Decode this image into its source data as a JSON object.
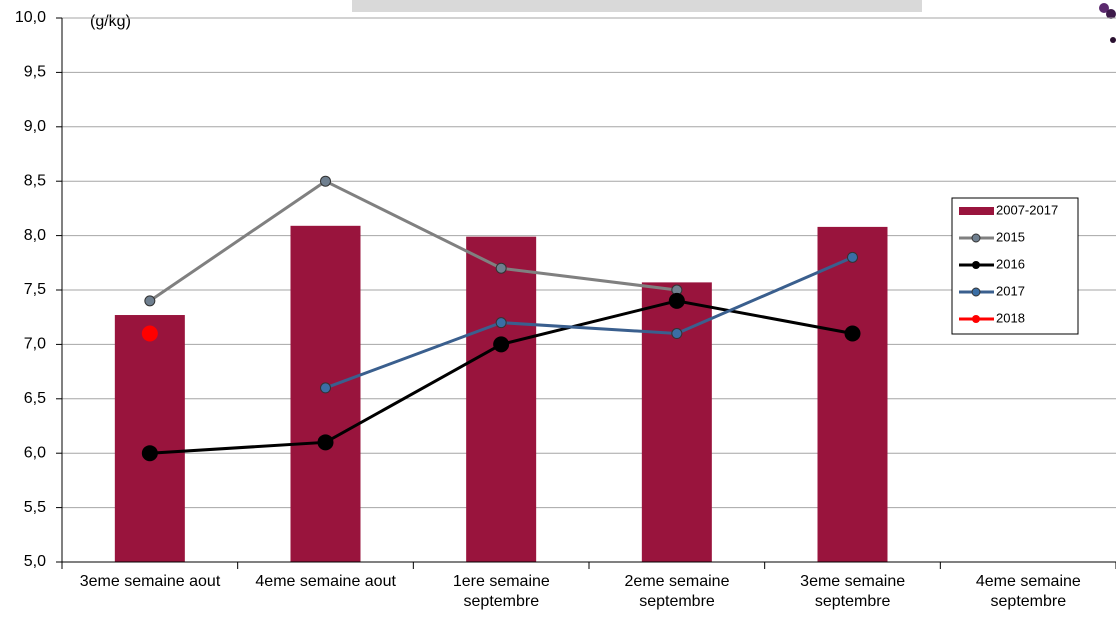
{
  "chart_data": {
    "type": "bar",
    "annotation": "(g/kg)",
    "categories": [
      "3eme semaine aout",
      "4eme semaine aout",
      "1ere semaine septembre",
      "2eme semaine septembre",
      "3eme semaine septembre",
      "4eme semaine septembre"
    ],
    "series": [
      {
        "name": "2007-2017",
        "type": "bar",
        "color": "#99143d",
        "values": [
          7.27,
          8.09,
          7.99,
          7.57,
          8.08,
          null
        ]
      },
      {
        "name": "2015",
        "type": "line",
        "color": "#808080",
        "marker_color": "#6f7f8f",
        "marker_size": 5,
        "values": [
          7.4,
          8.5,
          7.7,
          7.5,
          null,
          null
        ]
      },
      {
        "name": "2016",
        "type": "line",
        "color": "#000000",
        "marker_color": "#000000",
        "marker_size": 8,
        "values": [
          6.0,
          6.1,
          7.0,
          7.4,
          7.1,
          null
        ]
      },
      {
        "name": "2017",
        "type": "line",
        "color": "#3a5f8e",
        "marker_color": "#3a6ea5",
        "marker_size": 5,
        "values": [
          null,
          6.6,
          7.2,
          7.1,
          7.8,
          null
        ]
      },
      {
        "name": "2018",
        "type": "line",
        "color": "#ff0000",
        "marker_color": "#ff0000",
        "marker_size": 8,
        "values": [
          7.1,
          null,
          null,
          null,
          null,
          null
        ]
      }
    ],
    "ylim": [
      5,
      10
    ],
    "yticks": [
      {
        "value": 5,
        "label": "5,0"
      },
      {
        "value": 5.5,
        "label": "5,5"
      },
      {
        "value": 6,
        "label": "6,0"
      },
      {
        "value": 6.5,
        "label": "6,5"
      },
      {
        "value": 7,
        "label": "7,0"
      },
      {
        "value": 7.5,
        "label": "7,5"
      },
      {
        "value": 8,
        "label": "8,0"
      },
      {
        "value": 8.5,
        "label": "8,5"
      },
      {
        "value": 9,
        "label": "9,0"
      },
      {
        "value": 9.5,
        "label": "9,5"
      },
      {
        "value": 10,
        "label": "10,0"
      }
    ],
    "grid": true,
    "legend": "right"
  }
}
